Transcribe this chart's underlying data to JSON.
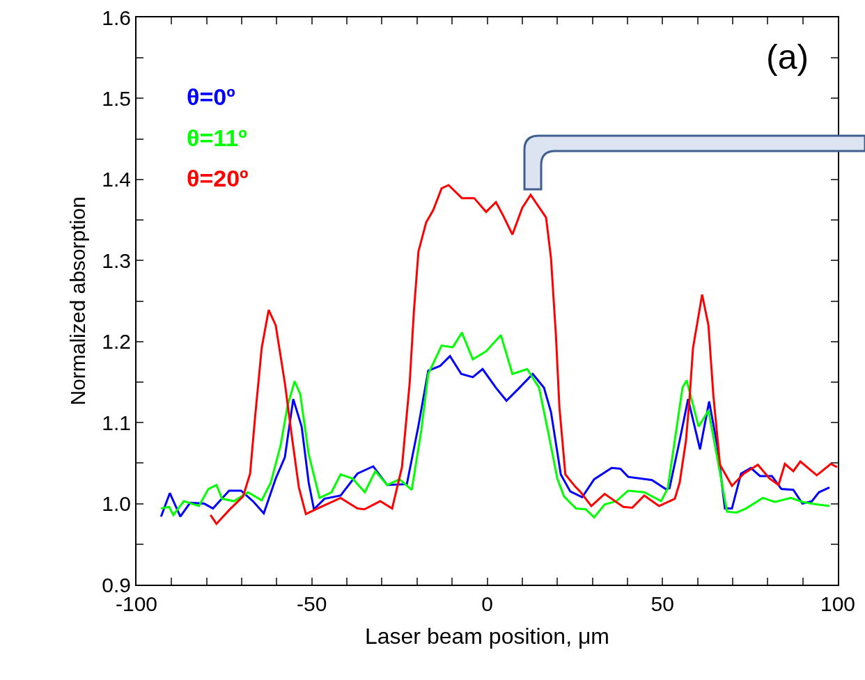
{
  "chart_data": {
    "type": "line",
    "xlabel": "Laser beam position, μm",
    "ylabel": "Normalized absorption",
    "xlim": [
      -100,
      100
    ],
    "xticks": [
      -100,
      {
        "value": -90,
        "label": null
      },
      {
        "value": -80,
        "label": null
      },
      {
        "value": -70,
        "label": null
      },
      {
        "value": -60,
        "label": null
      },
      -50,
      {
        "value": -40,
        "label": null
      },
      {
        "value": -30,
        "label": null
      },
      {
        "value": -20,
        "label": null
      },
      {
        "value": -10,
        "label": null
      },
      0,
      {
        "value": 10,
        "label": null
      },
      {
        "value": 20,
        "label": null
      },
      {
        "value": 30,
        "label": null
      },
      {
        "value": 40,
        "label": null
      },
      50,
      {
        "value": 60,
        "label": null
      },
      {
        "value": 70,
        "label": null
      },
      {
        "value": 80,
        "label": null
      },
      {
        "value": 90,
        "label": null
      },
      100
    ],
    "ylim": [
      0.9,
      1.6
    ],
    "yticks": [
      {
        "value": 0.9,
        "label": "0.9"
      },
      {
        "value": 0.95,
        "label": null
      },
      {
        "value": 1.0,
        "label": "1.0"
      },
      {
        "value": 1.05,
        "label": null
      },
      {
        "value": 1.1,
        "label": "1.1"
      },
      {
        "value": 1.15,
        "label": null
      },
      {
        "value": 1.2,
        "label": "1.2"
      },
      {
        "value": 1.25,
        "label": null
      },
      {
        "value": 1.3,
        "label": "1.3"
      },
      {
        "value": 1.35,
        "label": null
      },
      {
        "value": 1.4,
        "label": "1.4"
      },
      {
        "value": 1.45,
        "label": null
      },
      {
        "value": 1.5,
        "label": "1.5"
      },
      {
        "value": 1.55,
        "label": null
      },
      {
        "value": 1.6,
        "label": "1.6"
      }
    ],
    "legend": "top left",
    "marker": "none",
    "line_style": "solid",
    "annotations": [
      "(a)"
    ],
    "series": [
      {
        "name": "θ=0º",
        "color": "#0000ff",
        "x": [
          -93.0,
          -90.5,
          -87.5,
          -84.7,
          -80.7,
          -78.2,
          -73.6,
          -70.2,
          -66.8,
          -63.7,
          -60.3,
          -57.7,
          -55.3,
          -52.9,
          -50.9,
          -49.4,
          -46.4,
          -41.8,
          -37.0,
          -32.5,
          -28.5,
          -22.9,
          -19.6,
          -16.8,
          -13.4,
          -10.6,
          -7.4,
          -4.1,
          -1.3,
          2.5,
          5.5,
          9.2,
          13.0,
          16.2,
          18.2,
          21.0,
          23.7,
          27.1,
          30.5,
          35.5,
          38.0,
          40.2,
          47.0,
          50.9,
          52.0,
          54.9,
          57.3,
          60.7,
          63.3,
          65.6,
          67.8,
          69.8,
          72.4,
          75.2,
          77.8,
          81.2,
          83.9,
          87.3,
          89.9,
          92.6,
          94.6,
          97.6
        ],
        "values": [
          0.984,
          1.013,
          0.984,
          1.001,
          1.0,
          0.994,
          1.016,
          1.016,
          1.003,
          0.988,
          1.031,
          1.057,
          1.129,
          1.095,
          1.026,
          0.993,
          1.006,
          1.01,
          1.037,
          1.046,
          1.023,
          1.024,
          1.096,
          1.164,
          1.17,
          1.182,
          1.16,
          1.156,
          1.166,
          1.143,
          1.127,
          1.143,
          1.16,
          1.143,
          1.113,
          1.036,
          1.015,
          1.008,
          1.03,
          1.044,
          1.043,
          1.033,
          1.029,
          1.018,
          1.019,
          1.078,
          1.129,
          1.067,
          1.126,
          1.072,
          0.994,
          0.994,
          1.037,
          1.044,
          1.034,
          1.034,
          1.018,
          1.017,
          1.0,
          1.003,
          1.014,
          1.02
        ]
      },
      {
        "name": "θ=11º",
        "color": "#00ff00",
        "x": [
          -93.0,
          -90.7,
          -89.5,
          -86.5,
          -82.2,
          -79.5,
          -77.2,
          -75.6,
          -72.2,
          -68.2,
          -64.3,
          -61.7,
          -58.9,
          -56.9,
          -54.9,
          -53.3,
          -50.9,
          -47.8,
          -44.4,
          -41.8,
          -38.4,
          -34.9,
          -31.9,
          -28.5,
          -25.0,
          -21.5,
          -18.8,
          -16.8,
          -13.0,
          -9.8,
          -7.2,
          -4.1,
          -0.3,
          3.9,
          7.2,
          11.4,
          14.8,
          17.6,
          20.0,
          21.9,
          25.3,
          28.1,
          30.5,
          33.5,
          36.8,
          40.2,
          44.8,
          49.6,
          51.5,
          53.5,
          55.7,
          56.9,
          60.3,
          63.1,
          65.6,
          68.4,
          71.1,
          73.8,
          78.6,
          82.0,
          86.6,
          89.9,
          94.0,
          97.6
        ],
        "values": [
          0.994,
          0.996,
          0.986,
          1.003,
          0.997,
          1.018,
          1.023,
          1.006,
          1.003,
          1.014,
          1.004,
          1.026,
          1.072,
          1.121,
          1.151,
          1.135,
          1.061,
          1.007,
          1.014,
          1.036,
          1.031,
          1.014,
          1.04,
          1.023,
          1.03,
          1.017,
          1.09,
          1.16,
          1.195,
          1.193,
          1.211,
          1.178,
          1.188,
          1.208,
          1.16,
          1.166,
          1.143,
          1.084,
          1.031,
          1.009,
          0.994,
          0.993,
          0.983,
          0.999,
          1.003,
          1.016,
          1.014,
          1.003,
          1.019,
          1.078,
          1.143,
          1.152,
          1.095,
          1.115,
          1.057,
          0.99,
          0.989,
          0.994,
          1.007,
          1.002,
          1.007,
          1.002,
          0.999,
          0.997
        ]
      },
      {
        "name": "θ=20º",
        "color": "#ff0000",
        "x": [
          -78.9,
          -77.2,
          -73.6,
          -69.6,
          -67.6,
          -66.2,
          -64.3,
          -62.3,
          -60.3,
          -57.7,
          -55.7,
          -53.7,
          -51.7,
          -48.4,
          -41.8,
          -37.0,
          -35.0,
          -30.5,
          -27.1,
          -24.3,
          -22.1,
          -20.9,
          -19.6,
          -17.4,
          -15.4,
          -13.0,
          -11.0,
          -7.2,
          -3.7,
          -0.3,
          2.5,
          4.5,
          7.2,
          10.0,
          12.4,
          16.8,
          18.2,
          19.6,
          20.6,
          22.3,
          25.1,
          26.7,
          29.7,
          33.5,
          38.8,
          41.4,
          44.8,
          49.0,
          53.5,
          54.9,
          56.7,
          57.7,
          58.7,
          61.3,
          63.1,
          64.5,
          66.4,
          69.8,
          73.2,
          77.2,
          80.5,
          83.1,
          84.9,
          87.3,
          89.3,
          94.0,
          98.0,
          99.8
        ],
        "values": [
          0.986,
          0.975,
          0.992,
          1.009,
          1.037,
          1.106,
          1.192,
          1.239,
          1.22,
          1.149,
          1.083,
          1.02,
          0.987,
          0.994,
          1.007,
          0.994,
          0.993,
          1.003,
          0.994,
          1.045,
          1.149,
          1.237,
          1.311,
          1.347,
          1.362,
          1.389,
          1.393,
          1.377,
          1.377,
          1.36,
          1.372,
          1.356,
          1.332,
          1.365,
          1.381,
          1.353,
          1.303,
          1.208,
          1.119,
          1.036,
          1.021,
          1.014,
          0.997,
          1.012,
          0.996,
          0.995,
          1.01,
          0.997,
          1.006,
          1.026,
          1.078,
          1.129,
          1.192,
          1.258,
          1.22,
          1.134,
          1.048,
          1.022,
          1.037,
          1.048,
          1.031,
          1.023,
          1.049,
          1.04,
          1.052,
          1.035,
          1.049,
          1.045
        ]
      }
    ]
  }
}
